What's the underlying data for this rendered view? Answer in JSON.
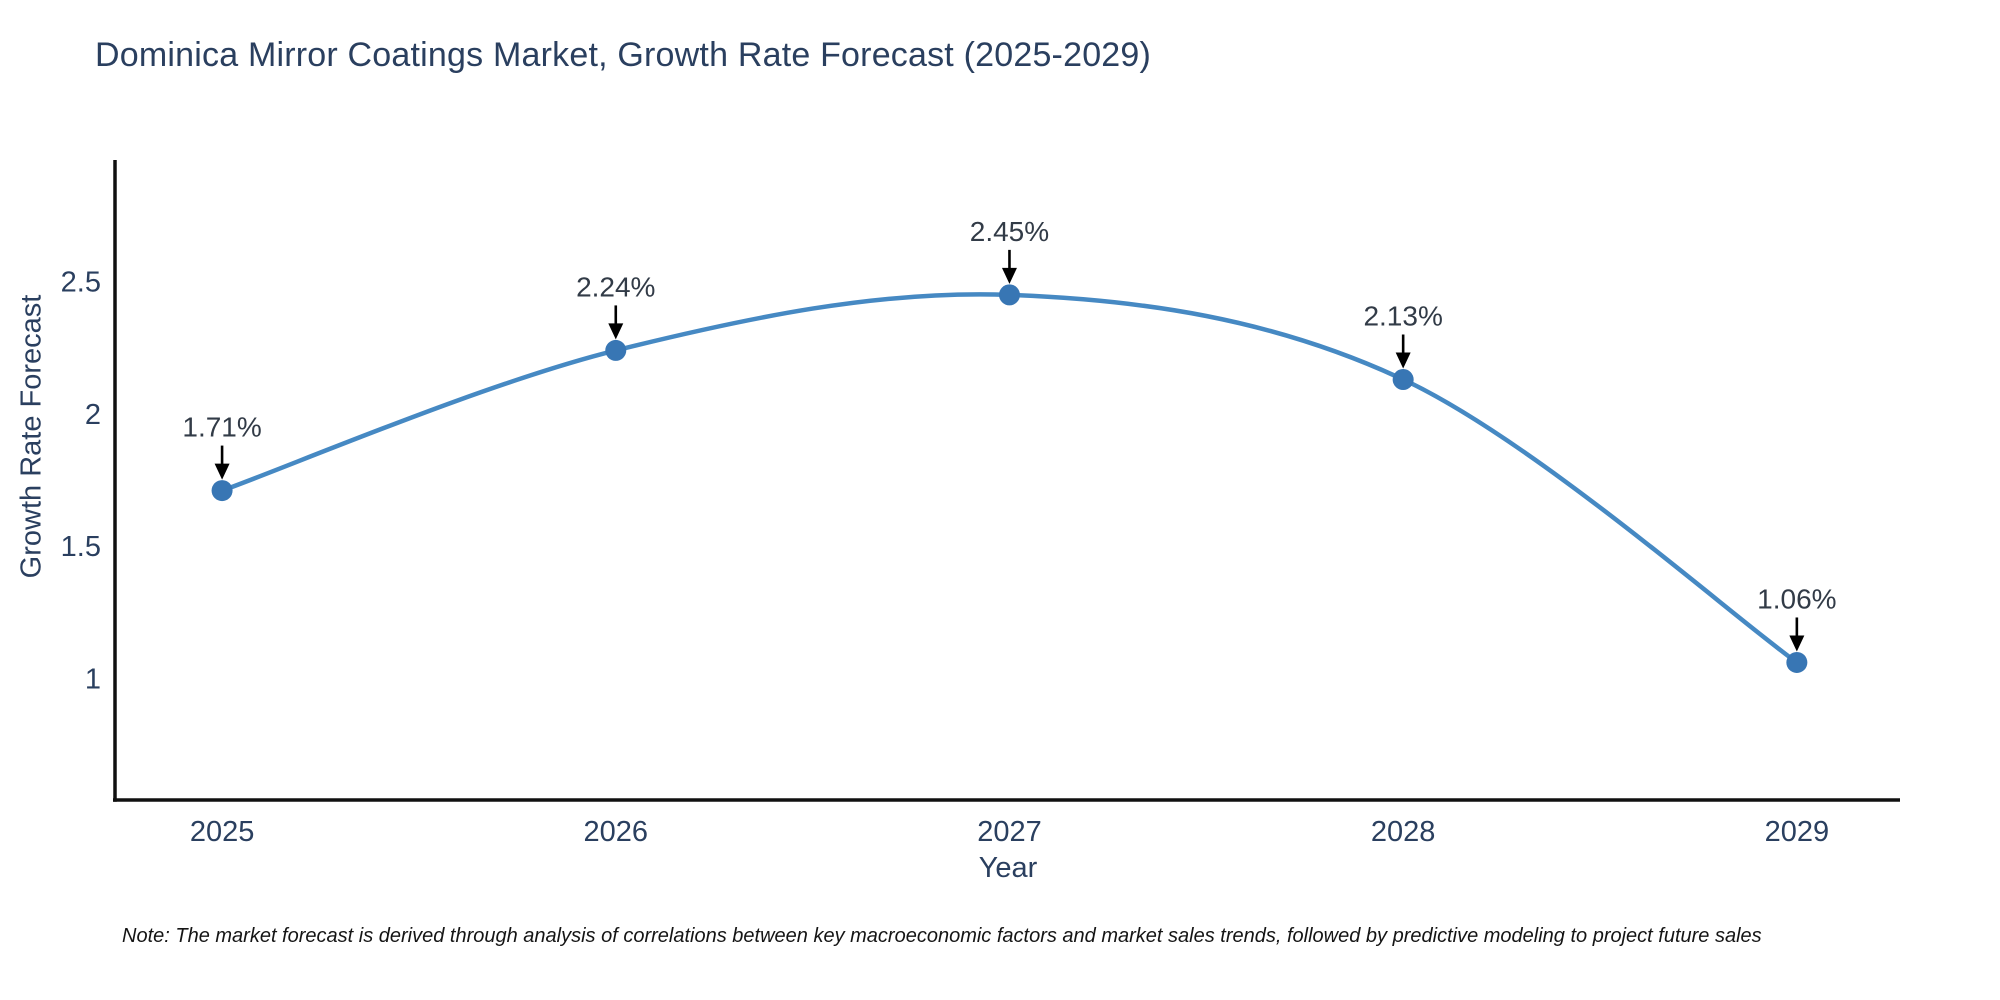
{
  "page": {
    "background": "#ffffff"
  },
  "chart_data": {
    "type": "line",
    "title": "Dominica Mirror Coatings Market, Growth Rate Forecast (2025-2029)",
    "xlabel": "Year",
    "ylabel": "Growth Rate Forecast",
    "categories": [
      2025,
      2026,
      2027,
      2028,
      2029
    ],
    "values": [
      1.71,
      2.24,
      2.45,
      2.13,
      1.06
    ],
    "point_labels": [
      "1.71%",
      "2.24%",
      "2.45%",
      "2.13%",
      "1.06%"
    ],
    "yticks": [
      1,
      1.5,
      2,
      2.5
    ],
    "ytick_labels": [
      "1",
      "1.5",
      "2",
      "2.5"
    ],
    "ylim": [
      0.54,
      2.96
    ],
    "xlim": [
      2024.728,
      2029.262
    ],
    "line_shape": "spline",
    "grid": false,
    "legend_position": "none",
    "colors": {
      "line": "#4689c3",
      "marker": "#3876b4",
      "axis": "#101010",
      "title_text": "#2a3f5f",
      "tick_text": "#2a3f5f",
      "annotation_text": "#323b47",
      "arrow": "#000000",
      "note_text": "#151515"
    },
    "note": "Note: The market forecast is derived through analysis of correlations between key macroeconomic factors and market sales trends, followed by predictive modeling to project future sales"
  }
}
